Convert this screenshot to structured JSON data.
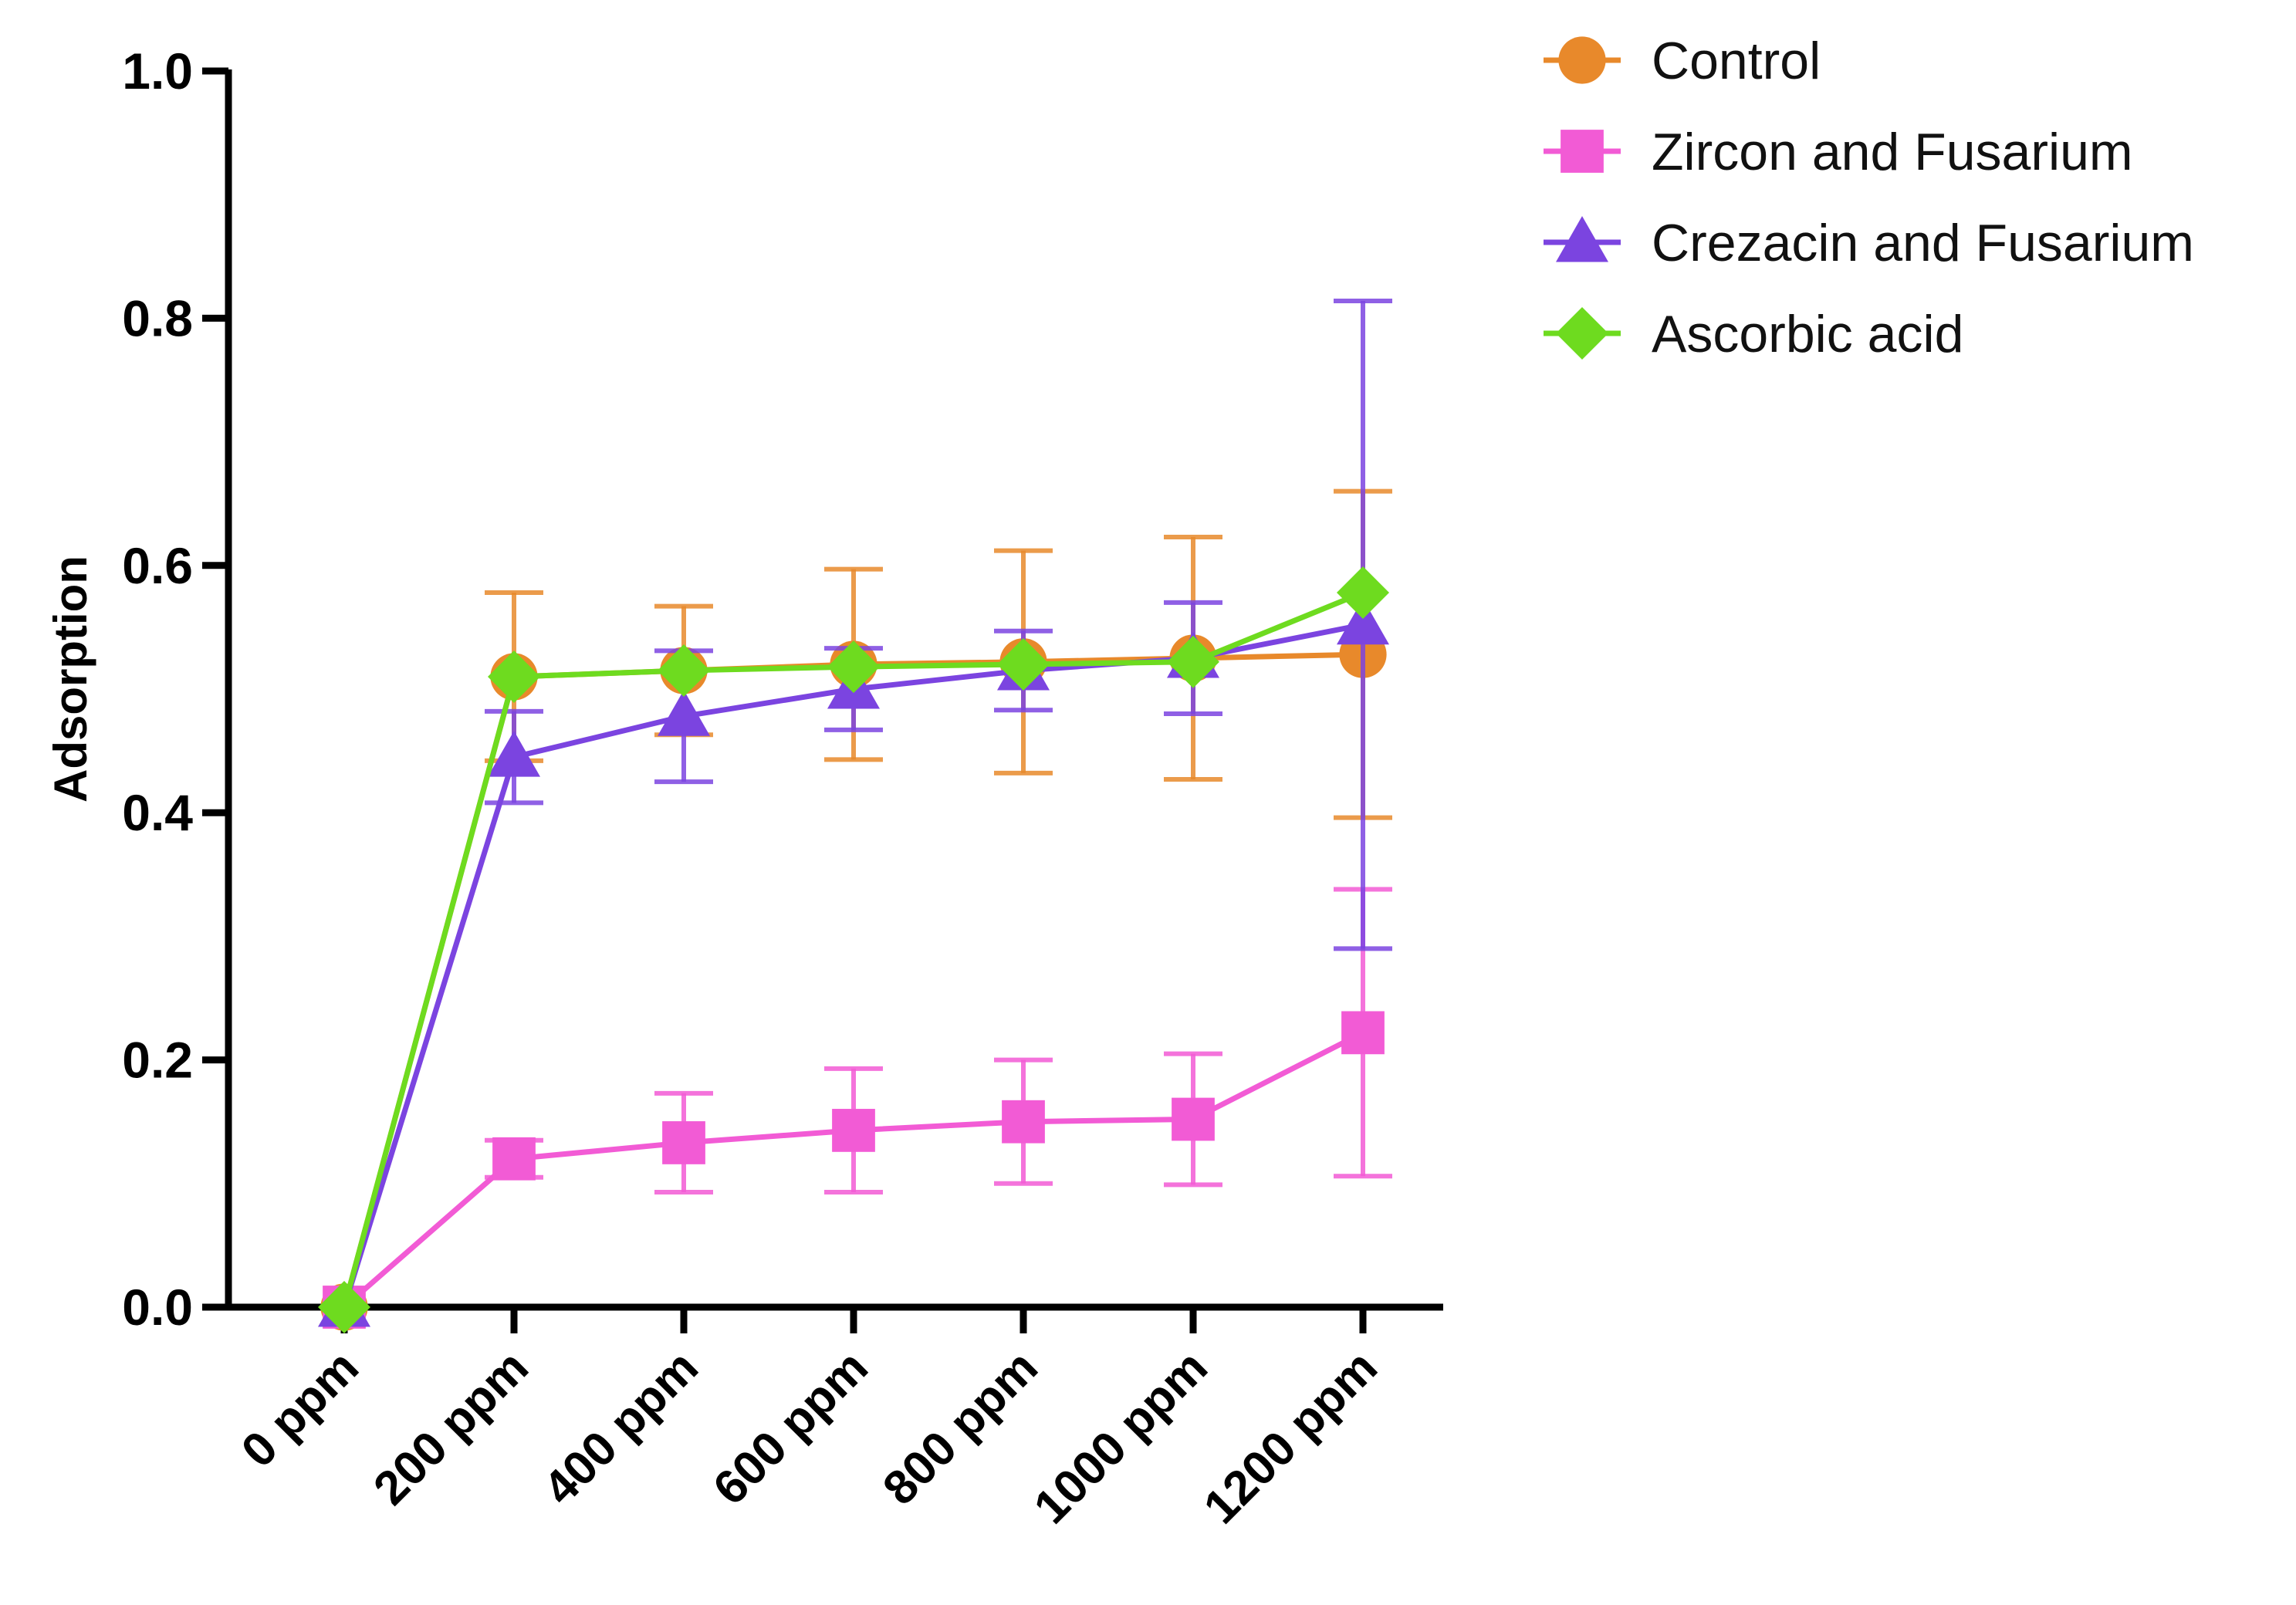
{
  "chart_data": {
    "type": "line",
    "title": "",
    "xlabel": "",
    "ylabel": "Adsorption",
    "ylim": [
      0,
      1.0
    ],
    "yticks": [
      "0.0",
      "0.2",
      "0.4",
      "0.6",
      "0.8",
      "1.0"
    ],
    "categories": [
      "0 ppm",
      "200 ppm",
      "400 ppm",
      "600 ppm",
      "800 ppm",
      "1000 ppm",
      "1200 ppm"
    ],
    "legend_position": "top-right",
    "series": [
      {
        "name": "Control",
        "color": "#E8892B",
        "marker": "circle",
        "values": [
          0.0,
          0.51,
          0.515,
          0.52,
          0.522,
          0.525,
          0.528
        ],
        "error": [
          0.0,
          0.068,
          0.052,
          0.077,
          0.09,
          0.098,
          0.132
        ]
      },
      {
        "name": "Zircon and Fusarium",
        "color": "#F25BD5",
        "marker": "square",
        "values": [
          0.0,
          0.12,
          0.133,
          0.143,
          0.15,
          0.152,
          0.222
        ],
        "error": [
          0.0,
          0.015,
          0.04,
          0.05,
          0.05,
          0.053,
          0.116
        ]
      },
      {
        "name": "Crezacin and Fusarium",
        "color": "#7B44E0",
        "marker": "triangle",
        "values": [
          0.0,
          0.445,
          0.478,
          0.5,
          0.515,
          0.525,
          0.552
        ],
        "error": [
          0.0,
          0.037,
          0.053,
          0.033,
          0.032,
          0.045,
          0.262
        ]
      },
      {
        "name": "Ascorbic acid",
        "color": "#6EDB1F",
        "marker": "diamond",
        "values": [
          0.0,
          0.51,
          0.515,
          0.518,
          0.52,
          0.522,
          0.578
        ],
        "error": [
          0.0,
          0.0,
          0.0,
          0.0,
          0.0,
          0.0,
          0.0
        ]
      }
    ]
  }
}
